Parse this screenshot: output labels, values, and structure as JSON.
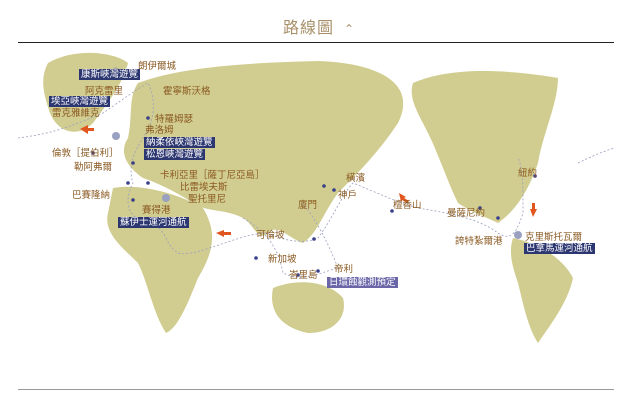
{
  "header": {
    "title": "路線圖",
    "toggle_icon": "chevron-up-icon"
  },
  "colors": {
    "accent": "#a8906a",
    "label": "#8a5a22",
    "box": "#2c3670",
    "land": "#c8c27a",
    "route": "#9aa0c0",
    "arrow": "#e0561e"
  },
  "ports": [
    {
      "name": "朗伊爾城",
      "type": "port"
    },
    {
      "name": "康斯峽灣遊覽",
      "type": "cruise"
    },
    {
      "name": "阿克雷里",
      "type": "port"
    },
    {
      "name": "霍寧斯沃格",
      "type": "port"
    },
    {
      "name": "埃亞峽灣遊覽",
      "type": "cruise"
    },
    {
      "name": "雷克雅維克",
      "type": "port"
    },
    {
      "name": "特羅姆瑟",
      "type": "port"
    },
    {
      "name": "弗洛姆",
      "type": "port"
    },
    {
      "name": "納柔依峽灣遊覽",
      "type": "cruise"
    },
    {
      "name": "松恩峽灣遊覽",
      "type": "cruise"
    },
    {
      "name": "倫敦［提伯利］",
      "type": "port"
    },
    {
      "name": "勒阿弗爾",
      "type": "port"
    },
    {
      "name": "卡利亞里［薩丁尼亞島］",
      "type": "port"
    },
    {
      "name": "比雷埃夫斯",
      "type": "port"
    },
    {
      "name": "聖托里尼",
      "type": "port"
    },
    {
      "name": "巴賽隆納",
      "type": "port"
    },
    {
      "name": "賽得港",
      "type": "port"
    },
    {
      "name": "蘇伊士運河通航",
      "type": "cruise"
    },
    {
      "name": "橫濱",
      "type": "port"
    },
    {
      "name": "神戶",
      "type": "port"
    },
    {
      "name": "廈門",
      "type": "port"
    },
    {
      "name": "檀香山",
      "type": "port"
    },
    {
      "name": "可倫坡",
      "type": "port"
    },
    {
      "name": "新加坡",
      "type": "port"
    },
    {
      "name": "峇里島",
      "type": "port"
    },
    {
      "name": "帝利",
      "type": "port"
    },
    {
      "name": "日環蝕觀測預定",
      "type": "cruise"
    },
    {
      "name": "紐約",
      "type": "port"
    },
    {
      "name": "曼薩尼約",
      "type": "port"
    },
    {
      "name": "誇特紮爾港",
      "type": "port"
    },
    {
      "name": "克里斯托瓦爾",
      "type": "port"
    },
    {
      "name": "巴拿馬運河通航",
      "type": "cruise"
    }
  ]
}
